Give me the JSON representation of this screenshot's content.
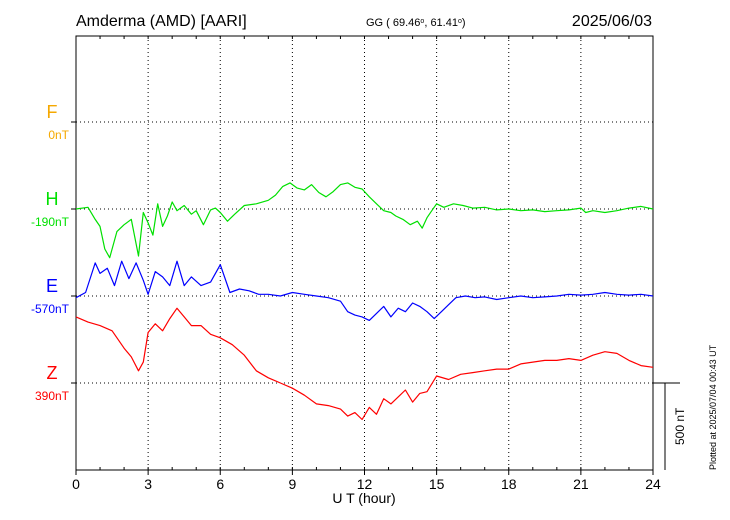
{
  "header": {
    "station": "Amderma (AMD)  [AARI]",
    "coords_prefix": "GG ( 69.46",
    "coords_mid": ",  61.41",
    "coords_suffix": ")",
    "date": "2025/06/03"
  },
  "side_note": "Plotted at 2025/07/04 00:43 UT",
  "scale_label": "500 nT",
  "chart_data": {
    "type": "line",
    "xlabel": "U T (hour)",
    "xlim": [
      0,
      24
    ],
    "xticks": [
      "0",
      "3",
      "6",
      "9",
      "12",
      "15",
      "18",
      "21",
      "24"
    ],
    "grid": true,
    "channels": [
      {
        "letter": "F",
        "offset": "0nT",
        "color": "#f5a800",
        "x": [],
        "values": []
      },
      {
        "letter": "H",
        "offset": "-190nT",
        "color": "#00e000",
        "x": [
          0,
          0.5,
          0.8,
          1.0,
          1.2,
          1.4,
          1.7,
          2.0,
          2.3,
          2.6,
          2.8,
          3.0,
          3.2,
          3.4,
          3.6,
          3.8,
          4.0,
          4.2,
          4.5,
          4.8,
          5.0,
          5.3,
          5.6,
          5.8,
          6.0,
          6.3,
          6.6,
          7.0,
          7.5,
          8.0,
          8.3,
          8.6,
          8.9,
          9.2,
          9.5,
          9.8,
          10.1,
          10.4,
          10.7,
          11.0,
          11.3,
          11.6,
          11.9,
          12.2,
          12.5,
          12.8,
          13.1,
          13.3,
          13.6,
          13.9,
          14.2,
          14.4,
          14.6,
          14.8,
          15.0,
          15.3,
          15.7,
          16.1,
          16.5,
          17.0,
          17.5,
          18.0,
          18.5,
          19.0,
          19.5,
          20.0,
          20.5,
          21.0,
          21.2,
          21.5,
          22.0,
          22.5,
          23.0,
          23.5,
          24.0
        ],
        "values": [
          0,
          10,
          -60,
          -100,
          -230,
          -280,
          -130,
          -90,
          -60,
          -270,
          -20,
          -80,
          -150,
          30,
          -100,
          -40,
          40,
          -10,
          20,
          -30,
          -10,
          -90,
          -5,
          5,
          -20,
          -70,
          -30,
          20,
          30,
          50,
          80,
          130,
          150,
          120,
          110,
          140,
          95,
          70,
          100,
          140,
          150,
          125,
          115,
          70,
          30,
          -10,
          -20,
          -40,
          -60,
          -90,
          -70,
          -110,
          -50,
          -10,
          30,
          10,
          30,
          20,
          5,
          10,
          -5,
          0,
          -10,
          -5,
          -15,
          -10,
          -5,
          5,
          -20,
          -10,
          -20,
          -10,
          5,
          15,
          0
        ]
      },
      {
        "letter": "E",
        "offset": "-570nT",
        "color": "#0000ff",
        "x": [
          0,
          0.4,
          0.8,
          1.0,
          1.3,
          1.6,
          1.9,
          2.2,
          2.5,
          2.8,
          3.0,
          3.3,
          3.6,
          3.9,
          4.2,
          4.5,
          4.8,
          5.2,
          5.6,
          6.0,
          6.4,
          6.8,
          7.2,
          7.6,
          8.0,
          8.5,
          9.0,
          9.5,
          10.0,
          10.5,
          11.0,
          11.3,
          11.6,
          11.9,
          12.2,
          12.5,
          12.8,
          13.1,
          13.4,
          13.7,
          14.0,
          14.3,
          14.6,
          14.9,
          15.2,
          15.5,
          15.8,
          16.2,
          16.6,
          17.0,
          17.5,
          18.0,
          18.5,
          19.0,
          19.5,
          20.0,
          20.5,
          21.0,
          21.5,
          22.0,
          22.5,
          23.0,
          23.5,
          24.0
        ],
        "values": [
          -10,
          20,
          190,
          130,
          160,
          60,
          200,
          100,
          190,
          90,
          10,
          140,
          110,
          60,
          200,
          60,
          110,
          60,
          80,
          180,
          20,
          40,
          30,
          10,
          10,
          0,
          20,
          10,
          0,
          -10,
          -30,
          -90,
          -110,
          -120,
          -140,
          -100,
          -60,
          -120,
          -70,
          -90,
          -40,
          -60,
          -90,
          -130,
          -90,
          -50,
          -10,
          0,
          -10,
          -5,
          -20,
          -10,
          0,
          -10,
          -5,
          0,
          10,
          5,
          10,
          20,
          10,
          5,
          10,
          0
        ]
      },
      {
        "letter": "Z",
        "offset": "390nT",
        "color": "#ff0000",
        "x": [
          0,
          0.5,
          1.0,
          1.5,
          2.0,
          2.3,
          2.6,
          2.8,
          3.0,
          3.3,
          3.6,
          3.9,
          4.2,
          4.5,
          4.8,
          5.2,
          5.6,
          6.0,
          6.5,
          7.0,
          7.5,
          8.0,
          8.5,
          9.0,
          9.5,
          10.0,
          10.5,
          11.0,
          11.3,
          11.6,
          11.9,
          12.2,
          12.5,
          12.8,
          13.1,
          13.4,
          13.7,
          14.0,
          14.3,
          14.6,
          15.0,
          15.5,
          16.0,
          16.5,
          17.0,
          17.5,
          18.0,
          18.5,
          19.0,
          19.5,
          20.0,
          20.5,
          21.0,
          21.5,
          22.0,
          22.5,
          23.0,
          23.5,
          24.0
        ],
        "values": [
          380,
          350,
          330,
          300,
          200,
          150,
          70,
          120,
          290,
          340,
          300,
          370,
          430,
          380,
          330,
          330,
          280,
          260,
          220,
          160,
          70,
          30,
          0,
          -30,
          -70,
          -120,
          -130,
          -150,
          -190,
          -170,
          -210,
          -140,
          -180,
          -90,
          -120,
          -80,
          -40,
          -110,
          -60,
          -50,
          40,
          20,
          50,
          60,
          70,
          80,
          80,
          110,
          120,
          130,
          130,
          140,
          130,
          160,
          180,
          170,
          130,
          100,
          90
        ]
      }
    ]
  }
}
